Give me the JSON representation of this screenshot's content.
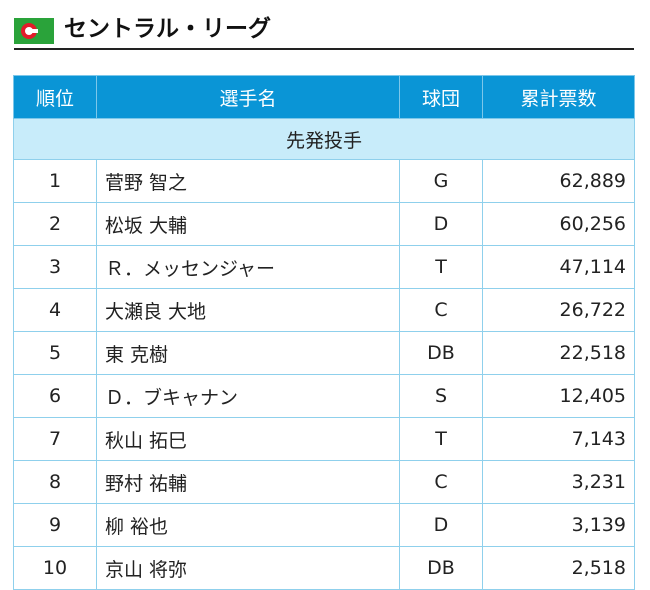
{
  "header": {
    "title": "セントラル・リーグ",
    "logo": {
      "colors": {
        "green": "#2aa33a",
        "red": "#e21b2a"
      }
    }
  },
  "table": {
    "columns": [
      "順位",
      "選手名",
      "球団",
      "累計票数"
    ],
    "section_label": "先発投手",
    "rows": [
      {
        "rank": "1",
        "name": "菅野 智之",
        "team": "G",
        "votes": "62,889"
      },
      {
        "rank": "2",
        "name": "松坂 大輔",
        "team": "D",
        "votes": "60,256"
      },
      {
        "rank": "3",
        "name": "Ｒ．メッセンジャー",
        "team": "T",
        "votes": "47,114"
      },
      {
        "rank": "4",
        "name": "大瀬良 大地",
        "team": "C",
        "votes": "26,722"
      },
      {
        "rank": "5",
        "name": "東 克樹",
        "team": "DB",
        "votes": "22,518"
      },
      {
        "rank": "6",
        "name": "Ｄ．ブキャナン",
        "team": "S",
        "votes": "12,405"
      },
      {
        "rank": "7",
        "name": "秋山 拓巳",
        "team": "T",
        "votes": "7,143"
      },
      {
        "rank": "8",
        "name": "野村 祐輔",
        "team": "C",
        "votes": "3,231"
      },
      {
        "rank": "9",
        "name": "柳 裕也",
        "team": "D",
        "votes": "3,139"
      },
      {
        "rank": "10",
        "name": "京山 将弥",
        "team": "DB",
        "votes": "2,518"
      }
    ]
  },
  "colors": {
    "header_bg": "#0a95d6",
    "section_bg": "#c8ecfa",
    "border": "#8fd0ec"
  }
}
